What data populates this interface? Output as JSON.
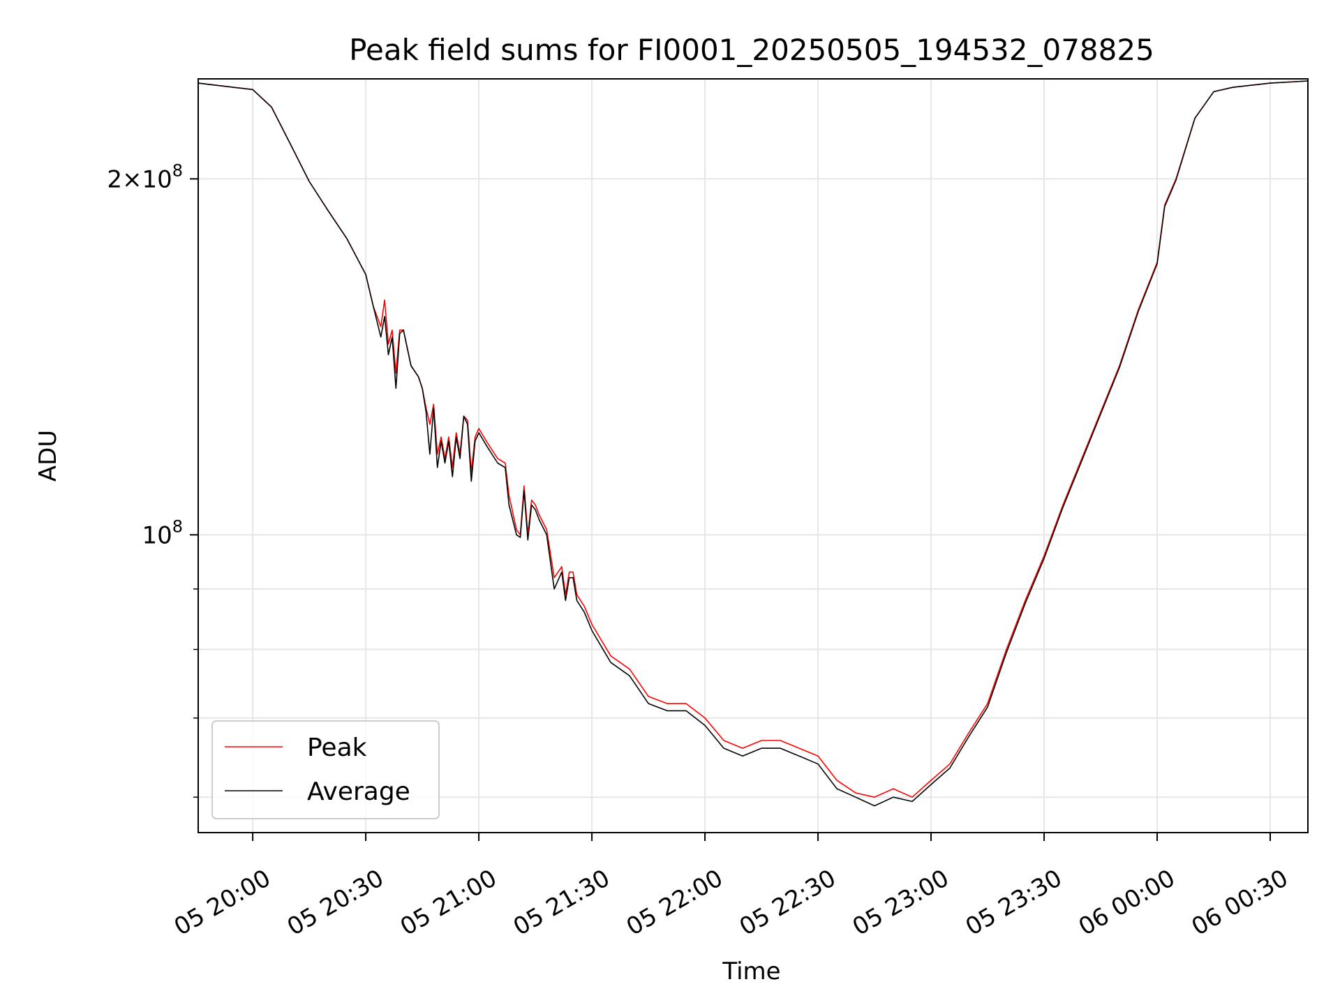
{
  "chart_data": {
    "type": "line",
    "title": "Peak field sums for FI0001_20250505_194532_078825",
    "xlabel": "Time",
    "ylabel": "ADU",
    "y_scale": "log",
    "grid": true,
    "legend_position": "lower-left",
    "xlim": [
      "05 19:45:32",
      "06 00:40:00"
    ],
    "ylim": [
      56000000,
      243000000
    ],
    "x_tick_labels": [
      "05 20:00",
      "05 20:30",
      "05 21:00",
      "05 21:30",
      "05 22:00",
      "05 22:30",
      "05 23:00",
      "05 23:30",
      "06 00:00",
      "06 00:30"
    ],
    "x_ticks": [
      "05 20:00",
      "05 20:30",
      "05 21:00",
      "05 21:30",
      "05 22:00",
      "05 22:30",
      "05 23:00",
      "05 23:30",
      "06 00:00",
      "06 00:30"
    ],
    "y_major_ticks": [
      100000000,
      200000000
    ],
    "y_major_tick_labels": [
      "10^8",
      "2×10^8"
    ],
    "y_minor_ticks": [
      60000000,
      70000000,
      80000000,
      90000000
    ],
    "series": [
      {
        "name": "Peak",
        "color": "#ff0000",
        "x": [
          "05 19:45:32",
          "05 19:55",
          "05 20:00",
          "05 20:05",
          "05 20:10",
          "05 20:15",
          "05 20:20",
          "05 20:25",
          "05 20:30",
          "05 20:32",
          "05 20:34",
          "05 20:35",
          "05 20:36",
          "05 20:37",
          "05 20:38",
          "05 20:39",
          "05 20:40",
          "05 20:42",
          "05 20:44",
          "05 20:45",
          "05 20:46",
          "05 20:47",
          "05 20:48",
          "05 20:49",
          "05 20:50",
          "05 20:51",
          "05 20:52",
          "05 20:53",
          "05 20:54",
          "05 20:55",
          "05 20:56",
          "05 20:57",
          "05 20:58",
          "05 20:59",
          "05 21:00",
          "05 21:02",
          "05 21:05",
          "05 21:07",
          "05 21:08",
          "05 21:10",
          "05 21:11",
          "05 21:12",
          "05 21:13",
          "05 21:14",
          "05 21:15",
          "05 21:16",
          "05 21:18",
          "05 21:20",
          "05 21:22",
          "05 21:23",
          "05 21:24",
          "05 21:25",
          "05 21:26",
          "05 21:28",
          "05 21:30",
          "05 21:35",
          "05 21:40",
          "05 21:45",
          "05 21:50",
          "05 21:55",
          "05 22:00",
          "05 22:05",
          "05 22:10",
          "05 22:15",
          "05 22:20",
          "05 22:25",
          "05 22:30",
          "05 22:35",
          "05 22:40",
          "05 22:45",
          "05 22:50",
          "05 22:55",
          "05 23:00",
          "05 23:05",
          "05 23:10",
          "05 23:15",
          "05 23:20",
          "05 23:25",
          "05 23:30",
          "05 23:35",
          "05 23:40",
          "05 23:45",
          "05 23:50",
          "05 23:55",
          "06 00:00",
          "06 00:02",
          "06 00:05",
          "06 00:10",
          "06 00:15",
          "06 00:20",
          "06 00:30",
          "06 00:40"
        ],
        "values": [
          241000000,
          239000000,
          238000000,
          230000000,
          214000000,
          199000000,
          188000000,
          178000000,
          166000000,
          156000000,
          150000000,
          158000000,
          145000000,
          149000000,
          137000000,
          149000000,
          149000000,
          139000000,
          136000000,
          133000000,
          128000000,
          124000000,
          129000000,
          117000000,
          121000000,
          116000000,
          121000000,
          114000000,
          122000000,
          117000000,
          126000000,
          125000000,
          113000000,
          121000000,
          123000000,
          120000000,
          116000000,
          115000000,
          108000000,
          101000000,
          100000000,
          110000000,
          100000000,
          107000000,
          106000000,
          104000000,
          101000000,
          92000000,
          94000000,
          89000000,
          93000000,
          93000000,
          89000000,
          87000000,
          84000000,
          79000000,
          77000000,
          73000000,
          72000000,
          72000000,
          70000000,
          67000000,
          66000000,
          67000000,
          67000000,
          66000000,
          65000000,
          62000000,
          60500000,
          60000000,
          61000000,
          60000000,
          62000000,
          64000000,
          68000000,
          72000000,
          80000000,
          88000000,
          96000000,
          106000000,
          116000000,
          127000000,
          139000000,
          155000000,
          170000000,
          190000000,
          200000000,
          225000000,
          237000000,
          239000000,
          241000000,
          242000000
        ]
      },
      {
        "name": "Average",
        "color": "#000000",
        "x": [
          "05 19:45:32",
          "05 19:55",
          "05 20:00",
          "05 20:05",
          "05 20:10",
          "05 20:15",
          "05 20:20",
          "05 20:25",
          "05 20:30",
          "05 20:32",
          "05 20:34",
          "05 20:35",
          "05 20:36",
          "05 20:37",
          "05 20:38",
          "05 20:39",
          "05 20:40",
          "05 20:42",
          "05 20:44",
          "05 20:45",
          "05 20:46",
          "05 20:47",
          "05 20:48",
          "05 20:49",
          "05 20:50",
          "05 20:51",
          "05 20:52",
          "05 20:53",
          "05 20:54",
          "05 20:55",
          "05 20:56",
          "05 20:57",
          "05 20:58",
          "05 20:59",
          "05 21:00",
          "05 21:02",
          "05 21:05",
          "05 21:07",
          "05 21:08",
          "05 21:10",
          "05 21:11",
          "05 21:12",
          "05 21:13",
          "05 21:14",
          "05 21:15",
          "05 21:16",
          "05 21:18",
          "05 21:20",
          "05 21:22",
          "05 21:23",
          "05 21:24",
          "05 21:25",
          "05 21:26",
          "05 21:28",
          "05 21:30",
          "05 21:35",
          "05 21:40",
          "05 21:45",
          "05 21:50",
          "05 21:55",
          "05 22:00",
          "05 22:05",
          "05 22:10",
          "05 22:15",
          "05 22:20",
          "05 22:25",
          "05 22:30",
          "05 22:35",
          "05 22:40",
          "05 22:45",
          "05 22:50",
          "05 22:55",
          "05 23:00",
          "05 23:05",
          "05 23:10",
          "05 23:15",
          "05 23:20",
          "05 23:25",
          "05 23:30",
          "05 23:35",
          "05 23:40",
          "05 23:45",
          "05 23:50",
          "05 23:55",
          "06 00:00",
          "06 00:02",
          "06 00:05",
          "06 00:10",
          "06 00:15",
          "06 00:20",
          "06 00:30",
          "06 00:40"
        ],
        "values": [
          241000000,
          239000000,
          238000000,
          230000000,
          214000000,
          199000000,
          188000000,
          178000000,
          166000000,
          156000000,
          147000000,
          153000000,
          142000000,
          147000000,
          133000000,
          148000000,
          149000000,
          139000000,
          136000000,
          133000000,
          127000000,
          117000000,
          128000000,
          114000000,
          120000000,
          115000000,
          120000000,
          112000000,
          121000000,
          116000000,
          126000000,
          124000000,
          111000000,
          120000000,
          122000000,
          119000000,
          115000000,
          114000000,
          106000000,
          100000000,
          99500000,
          109000000,
          99000000,
          106000000,
          105000000,
          103000000,
          100000000,
          90000000,
          93000000,
          88000000,
          92000000,
          92000000,
          88000000,
          86000000,
          83000000,
          78000000,
          76000000,
          72000000,
          71000000,
          71000000,
          69000000,
          66000000,
          65000000,
          66000000,
          66000000,
          65000000,
          64000000,
          61000000,
          60000000,
          59000000,
          60000000,
          59500000,
          61500000,
          63500000,
          67500000,
          71500000,
          79500000,
          87500000,
          95500000,
          105500000,
          115500000,
          126500000,
          138500000,
          154500000,
          169500000,
          189500000,
          199500000,
          225000000,
          237000000,
          239000000,
          241000000,
          242000000
        ]
      }
    ]
  }
}
